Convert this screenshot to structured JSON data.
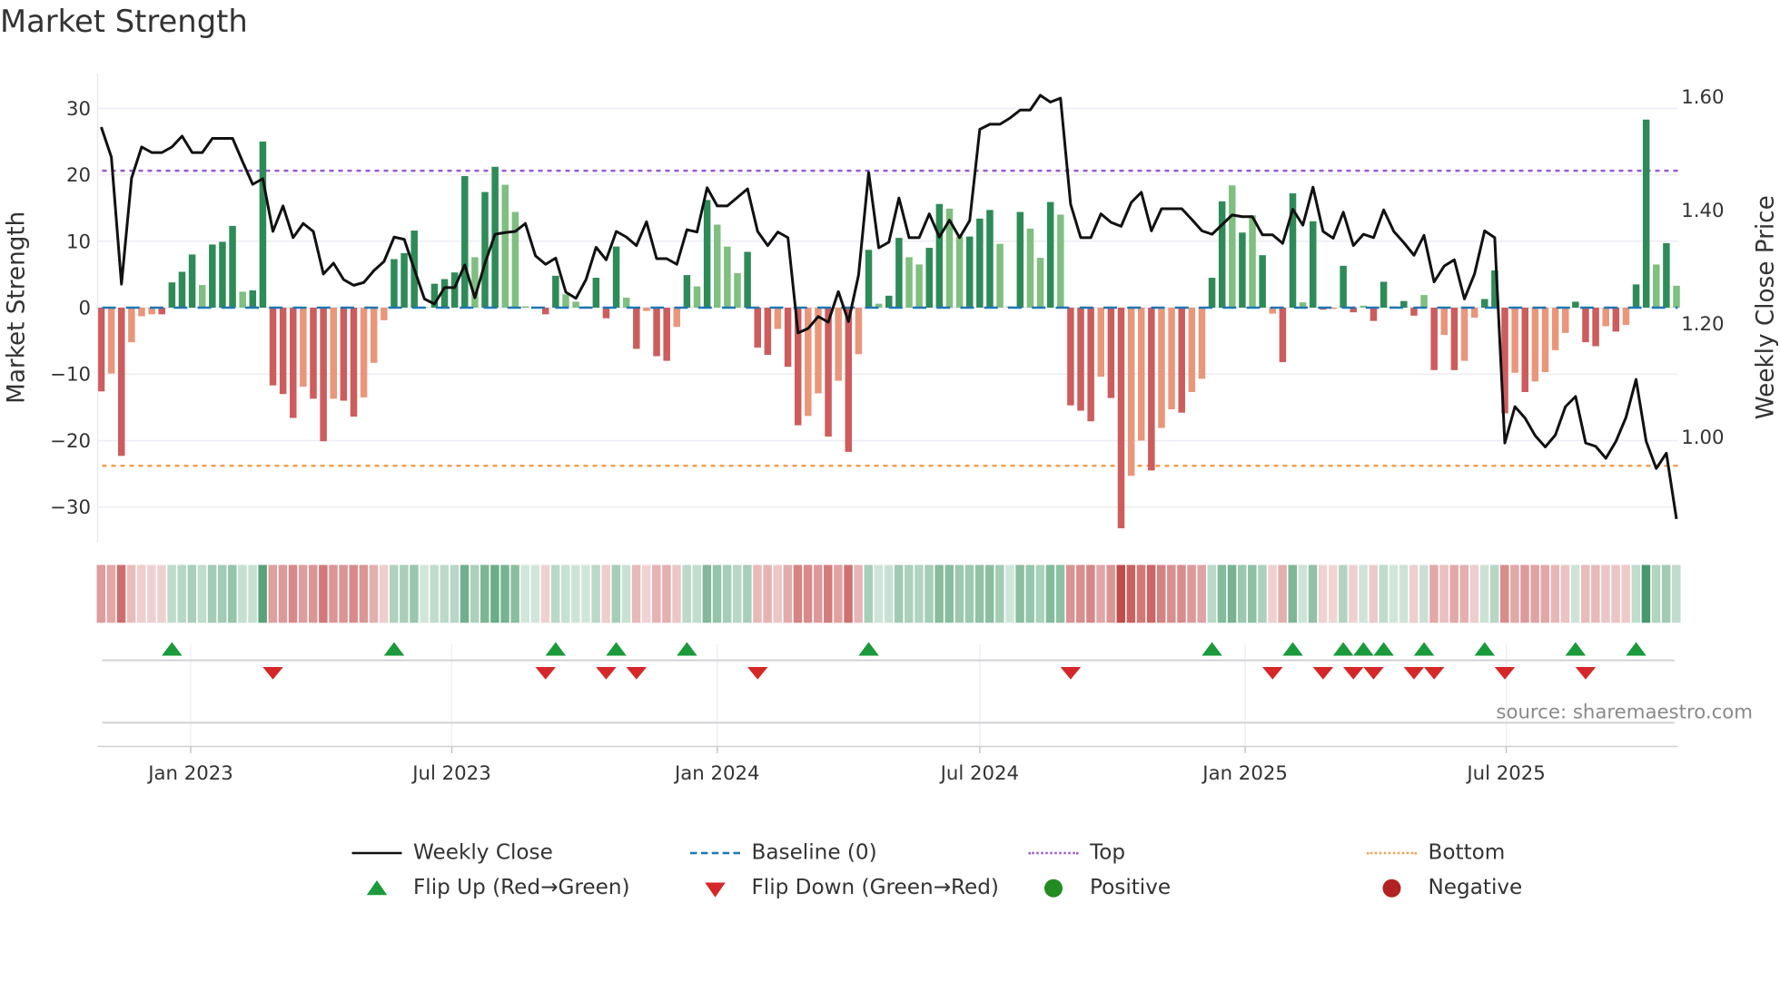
{
  "chart_data": {
    "type": "bar",
    "title": "Market Strength",
    "ylabel": "Market Strength",
    "y2label": "Weekly Close Price",
    "ylim": [
      -35.3,
      35.2
    ],
    "y2lim": [
      0.812,
      1.638
    ],
    "yticks": [
      -30,
      -20,
      -10,
      0,
      10,
      20,
      30
    ],
    "y2ticks": [
      "1.00",
      "1.20",
      "1.40",
      "1.60"
    ],
    "x_start": "2022-10-31",
    "x_step_days": 7,
    "xticks": [
      {
        "date": "2023-01-01",
        "label": "Jan 2023"
      },
      {
        "date": "2023-07-01",
        "label": "Jul 2023"
      },
      {
        "date": "2024-01-01",
        "label": "Jan 2024"
      },
      {
        "date": "2024-07-01",
        "label": "Jul 2024"
      },
      {
        "date": "2025-01-01",
        "label": "Jan 2025"
      },
      {
        "date": "2025-07-01",
        "label": "Jul 2025"
      }
    ],
    "top_level": 20.6,
    "bottom_level": -23.8,
    "baseline": 0,
    "strength": [
      -12.6,
      -9.9,
      -22.3,
      -5.2,
      -1.3,
      -1.0,
      -1.0,
      3.8,
      5.4,
      8.0,
      3.4,
      9.5,
      9.9,
      12.3,
      2.4,
      2.6,
      25.0,
      -11.7,
      -13.0,
      -16.6,
      -11.9,
      -13.7,
      -20.1,
      -13.7,
      -14.0,
      -16.4,
      -13.5,
      -8.3,
      -1.9,
      7.3,
      8.2,
      11.6,
      0.1,
      3.6,
      4.3,
      5.3,
      19.8,
      7.6,
      17.4,
      21.2,
      18.5,
      14.4,
      0.2,
      0.1,
      -1.0,
      4.8,
      2.0,
      0.9,
      0.2,
      4.5,
      -1.6,
      9.2,
      1.5,
      -6.2,
      -0.5,
      -7.3,
      -8.0,
      -2.9,
      4.9,
      3.2,
      16.2,
      12.5,
      9.2,
      5.2,
      8.4,
      -6.0,
      -7.1,
      -3.2,
      -8.9,
      -17.7,
      -16.3,
      -12.9,
      -19.4,
      -11.0,
      -21.7,
      -7.0,
      8.7,
      0.6,
      1.8,
      10.5,
      7.6,
      6.5,
      9.0,
      15.6,
      14.9,
      10.7,
      10.7,
      13.4,
      14.7,
      9.6,
      0.2,
      14.4,
      11.9,
      7.5,
      15.9,
      14.0,
      -14.7,
      -15.5,
      -17.1,
      -10.4,
      -13.6,
      -33.2,
      -25.3,
      -20.0,
      -24.5,
      -18.1,
      -15.3,
      -15.8,
      -12.7,
      -10.7,
      4.5,
      16.0,
      18.4,
      11.3,
      13.9,
      7.9,
      -0.9,
      -8.2,
      17.2,
      0.8,
      13.0,
      -0.3,
      -0.2,
      6.3,
      -0.7,
      0.3,
      -2.0,
      3.9,
      0.2,
      1.0,
      -1.2,
      1.9,
      -9.4,
      -4.1,
      -9.4,
      -8.0,
      -1.5,
      1.3,
      5.6,
      -15.9,
      -9.8,
      -12.7,
      -11.1,
      -9.7,
      -6.4,
      -3.8,
      0.9,
      -5.2,
      -5.8,
      -2.8,
      -3.6,
      -2.6,
      3.5,
      28.3,
      6.5,
      9.7,
      3.3
    ],
    "shade": "DLDLLLDDDDLDDDLDDDDDLDDLDDLLLDDDLDDDDLDDLLLLDDLLLDDDLDLDDLDLDLLLDDDLDDLLDLDLDLDDLLDDLLDDDLLDLLDLDDDLDDLLDLLDLLDDLDLDLDDLDDLDDLDDLDDLDLDLLDDDLDLLLLDDDLDLDDLD",
    "weekly_close": [
      1.544,
      1.491,
      1.267,
      1.454,
      1.509,
      1.499,
      1.499,
      1.509,
      1.528,
      1.499,
      1.499,
      1.524,
      1.524,
      1.524,
      1.483,
      1.443,
      1.453,
      1.36,
      1.405,
      1.349,
      1.374,
      1.36,
      1.285,
      1.304,
      1.275,
      1.265,
      1.27,
      1.291,
      1.307,
      1.35,
      1.346,
      1.293,
      1.241,
      1.232,
      1.261,
      1.261,
      1.301,
      1.243,
      1.304,
      1.355,
      1.358,
      1.36,
      1.374,
      1.317,
      1.302,
      1.313,
      1.253,
      1.242,
      1.275,
      1.332,
      1.31,
      1.36,
      1.35,
      1.335,
      1.377,
      1.312,
      1.312,
      1.302,
      1.363,
      1.359,
      1.437,
      1.405,
      1.405,
      1.42,
      1.435,
      1.36,
      1.335,
      1.359,
      1.349,
      1.181,
      1.189,
      1.21,
      1.2,
      1.254,
      1.201,
      1.283,
      1.464,
      1.331,
      1.341,
      1.419,
      1.349,
      1.349,
      1.391,
      1.35,
      1.38,
      1.349,
      1.379,
      1.54,
      1.549,
      1.549,
      1.56,
      1.574,
      1.574,
      1.6,
      1.588,
      1.595,
      1.408,
      1.349,
      1.349,
      1.391,
      1.376,
      1.369,
      1.411,
      1.429,
      1.361,
      1.4,
      1.4,
      1.4,
      1.381,
      1.361,
      1.355,
      1.372,
      1.389,
      1.386,
      1.386,
      1.354,
      1.354,
      1.339,
      1.399,
      1.371,
      1.438,
      1.36,
      1.348,
      1.394,
      1.335,
      1.355,
      1.349,
      1.398,
      1.36,
      1.34,
      1.318,
      1.353,
      1.271,
      1.299,
      1.31,
      1.241,
      1.285,
      1.361,
      1.349,
      0.987,
      1.051,
      1.031,
      1.0,
      0.98,
      1.001,
      1.051,
      1.069,
      0.987,
      0.981,
      0.96,
      0.99,
      1.032,
      1.099,
      0.99,
      0.942,
      0.969,
      0.853
    ],
    "colors": {
      "pos_strong": "#2e8b57",
      "pos_weak": "#7fbf7f",
      "neg_strong": "#cd5c5c",
      "neg_weak": "#e9967a",
      "close": "#111111",
      "baseline": "#1f77b4",
      "top": "#9b59d0",
      "bottom": "#f0a050",
      "flip_up": "#1a9a3a",
      "flip_down": "#d62728",
      "positive": "#228b22",
      "negative": "#b22222"
    },
    "source": "source: sharemaestro.com",
    "legend": {
      "placement": "bottom",
      "weekly_close": "Weekly Close",
      "baseline": "Baseline (0)",
      "top": "Top",
      "bottom": "Bottom",
      "flip_up": "Flip Up (Red→Green)",
      "flip_down": "Flip Down (Green→Red)",
      "positive": "Positive",
      "negative": "Negative"
    }
  }
}
